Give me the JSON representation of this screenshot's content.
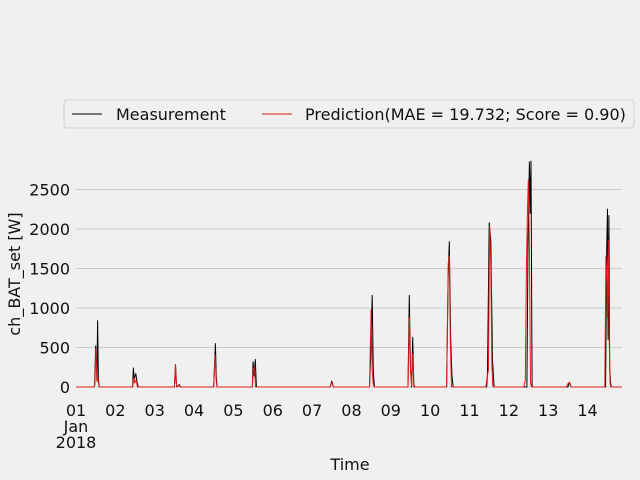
{
  "chart_data": {
    "type": "line",
    "title": "",
    "xlabel": "Time",
    "ylabel": "ch_BAT_set [W]",
    "ylim": [
      0,
      3000
    ],
    "y_ticks": [
      0,
      500,
      1000,
      1500,
      2000,
      2500
    ],
    "x_range": [
      "2018-01-01",
      "2018-01-14T21:00"
    ],
    "x_ticks": [
      "01",
      "02",
      "03",
      "04",
      "05",
      "06",
      "07",
      "08",
      "09",
      "10",
      "11",
      "12",
      "13",
      "14"
    ],
    "x_tick_sublabel": [
      "Jan",
      "2018"
    ],
    "grid": "horizontal",
    "legend_position": "top",
    "series": [
      {
        "name": "Measurement",
        "color": "#000000",
        "x": [
          "2018-01-01",
          "2018-01-01T11:00",
          "2018-01-01T11:20",
          "2018-01-01T12:00",
          "2018-01-01T12:45",
          "2018-01-01T13:10",
          "2018-01-01T13:40",
          "2018-01-01T14:10",
          "2018-01-01T15:00",
          "2018-01-02T10:30",
          "2018-01-02T11:00",
          "2018-01-02T11:30",
          "2018-01-02T12:30",
          "2018-01-02T13:15",
          "2018-01-02T14:00",
          "2018-01-03T12:00",
          "2018-01-03T12:40",
          "2018-01-03T13:20",
          "2018-01-03T15:00",
          "2018-01-03T15:40",
          "2018-01-03T16:20",
          "2018-01-04T12:00",
          "2018-01-04T13:00",
          "2018-01-04T13:30",
          "2018-01-04T14:00",
          "2018-01-05T11:30",
          "2018-01-05T12:00",
          "2018-01-05T12:40",
          "2018-01-05T13:20",
          "2018-01-05T14:00",
          "2018-01-07T11:00",
          "2018-01-07T12:00",
          "2018-01-07T13:00",
          "2018-01-08T11:00",
          "2018-01-08T11:45",
          "2018-01-08T12:40",
          "2018-01-08T13:20",
          "2018-01-08T14:00",
          "2018-01-09T10:30",
          "2018-01-09T11:15",
          "2018-01-09T12:00",
          "2018-01-09T12:40",
          "2018-01-09T13:20",
          "2018-01-09T14:00",
          "2018-01-09T14:30",
          "2018-01-10T10:00",
          "2018-01-10T11:00",
          "2018-01-10T11:40",
          "2018-01-10T12:30",
          "2018-01-10T13:15",
          "2018-01-10T14:00",
          "2018-01-10T14:30",
          "2018-01-11T10:30",
          "2018-01-11T11:00",
          "2018-01-11T12:00",
          "2018-01-11T13:00",
          "2018-01-11T14:00",
          "2018-01-11T15:00",
          "2018-01-11T15:40",
          "2018-01-12T11:00",
          "2018-01-12T11:40",
          "2018-01-12T12:30",
          "2018-01-12T13:00",
          "2018-01-12T13:30",
          "2018-01-12T14:10",
          "2018-01-12T15:00",
          "2018-01-13T12:00",
          "2018-01-13T13:00",
          "2018-01-13T14:00",
          "2018-01-14T11:00",
          "2018-01-14T11:40",
          "2018-01-14T12:10",
          "2018-01-14T12:30",
          "2018-01-14T13:00",
          "2018-01-14T13:30",
          "2018-01-14T14:00",
          "2018-01-14T14:30",
          "2018-01-14T21:00"
        ],
        "values": [
          0,
          0,
          30,
          520,
          90,
          840,
          100,
          0,
          0,
          0,
          240,
          100,
          170,
          60,
          0,
          0,
          285,
          0,
          30,
          0,
          0,
          0,
          550,
          160,
          0,
          0,
          320,
          140,
          350,
          0,
          0,
          75,
          0,
          0,
          400,
          1160,
          200,
          0,
          0,
          1160,
          240,
          0,
          630,
          40,
          0,
          0,
          1400,
          1840,
          600,
          150,
          0,
          0,
          0,
          180,
          2080,
          1850,
          340,
          0,
          0,
          0,
          1800,
          2850,
          2200,
          2860,
          0,
          0,
          0,
          60,
          0,
          0,
          1750,
          2250,
          600,
          2170,
          250,
          60,
          0,
          0
        ]
      },
      {
        "name": "Prediction(MAE = 19.732; Score = 0.90)",
        "color": "#e41a1c",
        "x": [
          "2018-01-01",
          "2018-01-01T11:00",
          "2018-01-01T11:30",
          "2018-01-01T12:10",
          "2018-01-01T12:50",
          "2018-01-01T13:20",
          "2018-01-01T14:00",
          "2018-01-01T15:00",
          "2018-01-02T10:30",
          "2018-01-02T11:10",
          "2018-01-02T11:45",
          "2018-01-02T12:40",
          "2018-01-02T13:30",
          "2018-01-03T12:00",
          "2018-01-03T12:40",
          "2018-01-03T13:20",
          "2018-01-03T15:00",
          "2018-01-03T15:40",
          "2018-01-03T16:20",
          "2018-01-04T12:00",
          "2018-01-04T12:50",
          "2018-01-04T13:30",
          "2018-01-04T14:00",
          "2018-01-05T11:30",
          "2018-01-05T12:10",
          "2018-01-05T12:50",
          "2018-01-05T13:30",
          "2018-01-07T11:00",
          "2018-01-07T12:00",
          "2018-01-07T13:00",
          "2018-01-08T11:00",
          "2018-01-08T12:00",
          "2018-01-08T12:40",
          "2018-01-08T13:20",
          "2018-01-08T14:00",
          "2018-01-09T10:30",
          "2018-01-09T11:20",
          "2018-01-09T12:00",
          "2018-01-09T12:40",
          "2018-01-09T13:20",
          "2018-01-09T14:00",
          "2018-01-10T10:00",
          "2018-01-10T11:00",
          "2018-01-10T11:40",
          "2018-01-10T12:20",
          "2018-01-10T13:00",
          "2018-01-11T10:00",
          "2018-01-11T10:40",
          "2018-01-11T11:30",
          "2018-01-11T12:20",
          "2018-01-11T13:00",
          "2018-01-11T13:40",
          "2018-01-11T14:10",
          "2018-01-11T14:40",
          "2018-01-12T09:00",
          "2018-01-12T10:00",
          "2018-01-12T10:40",
          "2018-01-12T11:20",
          "2018-01-12T11:50",
          "2018-01-12T12:30",
          "2018-01-12T13:10",
          "2018-01-12T13:50",
          "2018-01-13T11:00",
          "2018-01-13T12:00",
          "2018-01-13T13:00",
          "2018-01-13T14:00",
          "2018-01-14T10:30",
          "2018-01-14T11:10",
          "2018-01-14T11:40",
          "2018-01-14T12:10",
          "2018-01-14T12:40",
          "2018-01-14T13:10",
          "2018-01-14T13:40",
          "2018-01-14T14:10",
          "2018-01-14T21:00"
        ],
        "values": [
          0,
          0,
          30,
          480,
          70,
          120,
          0,
          0,
          0,
          120,
          50,
          90,
          0,
          0,
          280,
          0,
          20,
          0,
          0,
          0,
          400,
          80,
          0,
          0,
          220,
          260,
          0,
          0,
          60,
          0,
          0,
          980,
          200,
          20,
          0,
          0,
          880,
          210,
          20,
          420,
          0,
          0,
          1560,
          1660,
          520,
          0,
          0,
          120,
          210,
          2040,
          1500,
          270,
          20,
          0,
          0,
          80,
          1500,
          2200,
          2620,
          1750,
          60,
          0,
          0,
          40,
          60,
          0,
          0,
          1650,
          1430,
          880,
          1850,
          640,
          60,
          0,
          0
        ]
      }
    ]
  }
}
